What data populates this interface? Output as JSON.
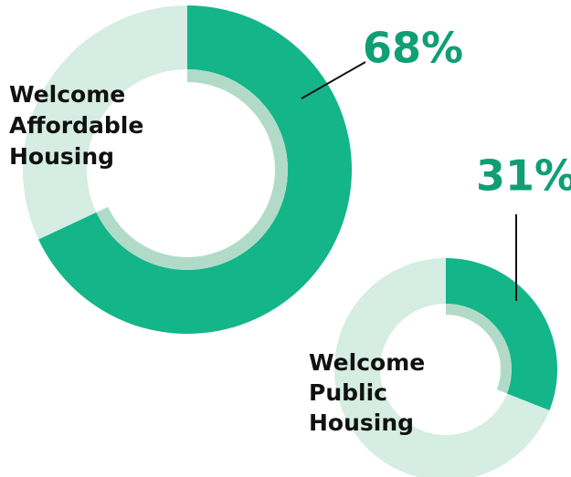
{
  "chart_data": [
    {
      "type": "donut",
      "label": [
        "Welcome",
        "Affordable",
        "Housing"
      ],
      "value": 68,
      "value_label": "68%",
      "color": "#13b589"
    },
    {
      "type": "donut",
      "label": [
        "Welcome",
        "Public",
        "Housing"
      ],
      "value": 31,
      "value_label": "31%",
      "color": "#13b589"
    }
  ]
}
